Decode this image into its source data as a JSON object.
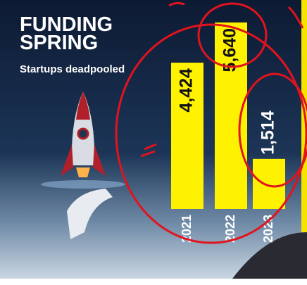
{
  "chart_data": {
    "type": "bar",
    "title": "FUNDING SPRING",
    "subtitle": "Startups deadpooled",
    "categories": [
      "2021",
      "2022",
      "2023"
    ],
    "values": [
      4424,
      5640,
      1514
    ],
    "value_labels": [
      "4,424",
      "5,640",
      "1,514"
    ],
    "color": "#fff200",
    "ylim": [
      0,
      6000
    ]
  }
}
